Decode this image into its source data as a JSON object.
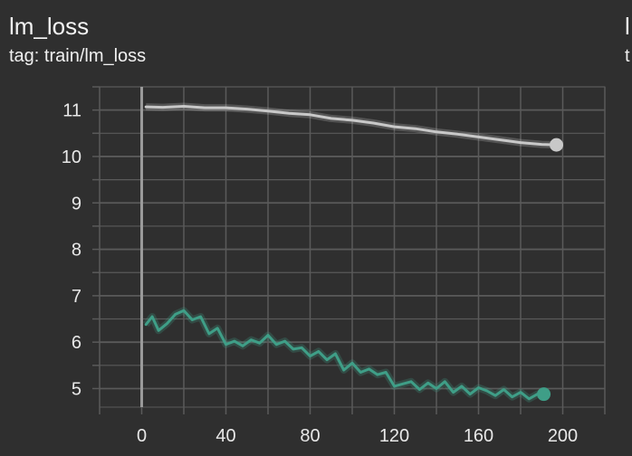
{
  "card": {
    "title": "lm_loss",
    "tag": "tag: train/lm_loss"
  },
  "next_card": {
    "title": "l",
    "tag": "t"
  },
  "chart_data": {
    "type": "line",
    "title": "lm_loss",
    "xlabel": "",
    "ylabel": "",
    "xlim": [
      -20,
      220
    ],
    "ylim": [
      4.6,
      11.5
    ],
    "x_ticks": [
      0,
      40,
      80,
      120,
      160,
      200
    ],
    "y_ticks": [
      5,
      6,
      7,
      8,
      9,
      10,
      11
    ],
    "grid": true,
    "colors": {
      "background": "#2f2f2f",
      "grid": "#5a5a5a",
      "axis": "#9a9a9a",
      "series_1": "#c8c8c8",
      "series_2": "#3f9e87"
    },
    "series": [
      {
        "x": [
          2,
          10,
          20,
          30,
          40,
          50,
          60,
          70,
          80,
          90,
          100,
          110,
          120,
          130,
          140,
          150,
          160,
          170,
          180,
          190,
          197
        ],
        "y": [
          11.07,
          11.06,
          11.08,
          11.05,
          11.05,
          11.02,
          10.98,
          10.93,
          10.9,
          10.82,
          10.78,
          10.72,
          10.64,
          10.6,
          10.53,
          10.48,
          10.42,
          10.36,
          10.3,
          10.26,
          10.25
        ]
      },
      {
        "x": [
          2,
          5,
          8,
          12,
          16,
          20,
          24,
          28,
          32,
          36,
          40,
          44,
          48,
          52,
          56,
          60,
          64,
          68,
          72,
          76,
          80,
          84,
          88,
          92,
          96,
          100,
          104,
          108,
          112,
          116,
          120,
          124,
          128,
          132,
          136,
          140,
          144,
          148,
          152,
          156,
          160,
          164,
          168,
          172,
          176,
          180,
          184,
          188,
          191
        ],
        "y": [
          6.38,
          6.55,
          6.25,
          6.4,
          6.6,
          6.68,
          6.48,
          6.55,
          6.18,
          6.3,
          5.95,
          6.02,
          5.92,
          6.05,
          5.98,
          6.15,
          5.95,
          6.02,
          5.85,
          5.88,
          5.7,
          5.8,
          5.62,
          5.75,
          5.4,
          5.55,
          5.35,
          5.42,
          5.3,
          5.35,
          5.05,
          5.1,
          5.15,
          4.98,
          5.12,
          5.0,
          5.15,
          4.92,
          5.05,
          4.88,
          5.02,
          4.95,
          4.85,
          4.98,
          4.82,
          4.92,
          4.78,
          4.88,
          4.88
        ]
      }
    ]
  }
}
